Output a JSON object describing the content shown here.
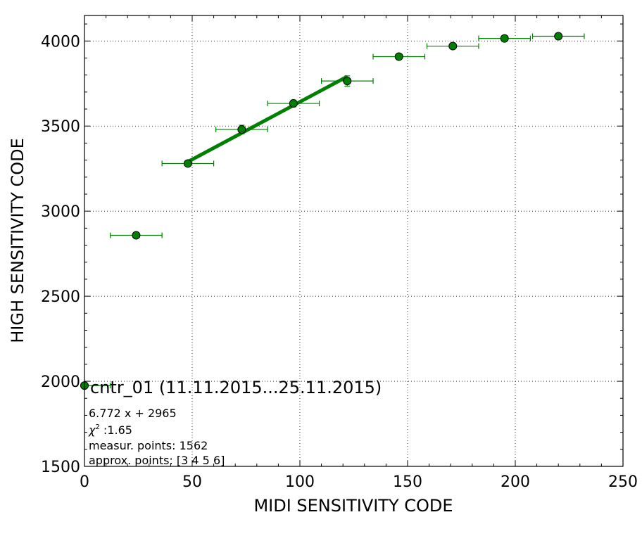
{
  "chart_data": {
    "type": "scatter",
    "xlabel": "MIDI SENSITIVITY CODE",
    "ylabel": "HIGH SENSITIVITY CODE",
    "xlim": [
      0,
      250
    ],
    "ylim": [
      1500,
      4150
    ],
    "xticks": [
      "0",
      "50",
      "100",
      "150",
      "200",
      "250"
    ],
    "yticks": [
      "1500",
      "2000",
      "2500",
      "3000",
      "3500",
      "4000"
    ],
    "grid": true,
    "colors": {
      "series": "#008000",
      "fit": "#008000",
      "marker_edge": "#000000"
    },
    "series": [
      {
        "points": [
          {
            "x": 0,
            "y": 1975,
            "xerr": 12,
            "yerr": 0
          },
          {
            "x": 24,
            "y": 2858,
            "xerr": 12,
            "yerr": 0
          },
          {
            "x": 48,
            "y": 3280,
            "xerr": 12,
            "yerr": 10
          },
          {
            "x": 73,
            "y": 3480,
            "xerr": 12,
            "yerr": 25
          },
          {
            "x": 97,
            "y": 3633,
            "xerr": 12,
            "yerr": 20
          },
          {
            "x": 122,
            "y": 3765,
            "xerr": 12,
            "yerr": 30
          },
          {
            "x": 146,
            "y": 3908,
            "xerr": 12,
            "yerr": 10
          },
          {
            "x": 171,
            "y": 3970,
            "xerr": 12,
            "yerr": 10
          },
          {
            "x": 195,
            "y": 4015,
            "xerr": 12,
            "yerr": 10
          },
          {
            "x": 220,
            "y": 4028,
            "xerr": 12,
            "yerr": 8
          }
        ]
      }
    ],
    "fit": {
      "slope": 6.772,
      "intercept": 2965,
      "x_range": [
        48,
        122
      ]
    },
    "legend": {
      "title": "cntr_01 (11.11.2015...25.11.2015)",
      "placement": "lower-left"
    },
    "annotations": {
      "equation": "6.772 x + 2965",
      "chi2_label": "χ",
      "chi2_sup": "2",
      "chi2_value": " :1.65",
      "measur_points": "measur. points: 1562",
      "approx_points": "approx. points: [3 4 5 6]"
    }
  }
}
